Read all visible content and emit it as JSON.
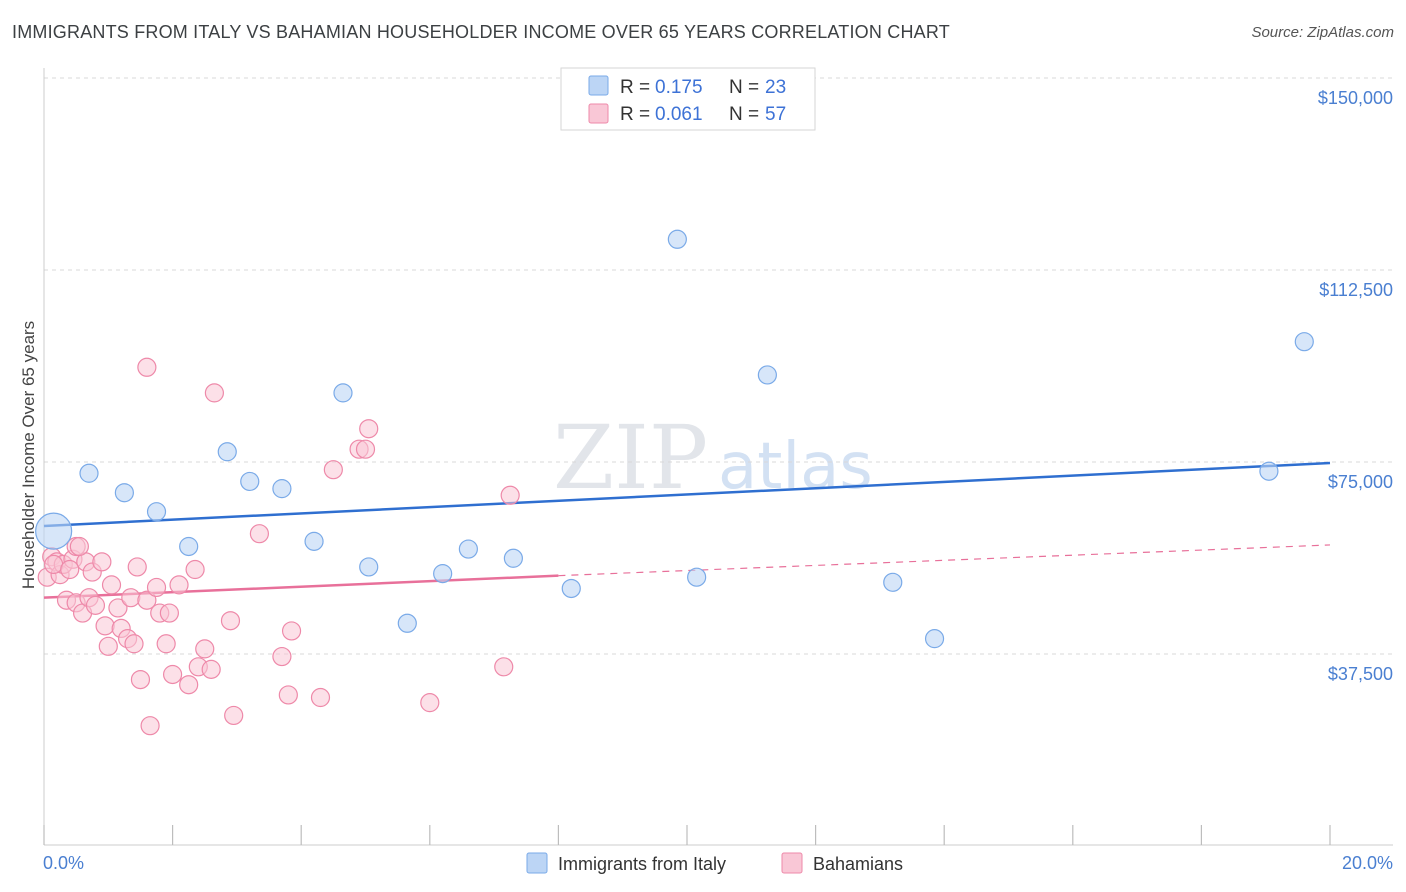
{
  "title": "IMMIGRANTS FROM ITALY VS BAHAMIAN HOUSEHOLDER INCOME OVER 65 YEARS CORRELATION CHART",
  "source": "Source: ZipAtlas.com",
  "watermark": {
    "zip": "ZIP",
    "atlas": "atlas"
  },
  "colors": {
    "blue": "#7aaae8",
    "blue_fill": "#bcd5f5",
    "blue_line": "#2f6fd0",
    "pink": "#ee89a9",
    "pink_fill": "#f9c7d6",
    "pink_line": "#e8709a",
    "grid": "#d8d8d8",
    "tick_text": "#4a7fd1"
  },
  "legend": {
    "rows": [
      {
        "r_label": "R =",
        "r_value": "0.175",
        "n_label": "N =",
        "n_value": "23"
      },
      {
        "r_label": "R =",
        "r_value": "0.061",
        "n_label": "N =",
        "n_value": "57"
      }
    ]
  },
  "chart_data": {
    "type": "scatter",
    "title": "IMMIGRANTS FROM ITALY VS BAHAMIAN HOUSEHOLDER INCOME OVER 65 YEARS CORRELATION CHART",
    "xlabel": "",
    "ylabel": "Householder Income Over 65 years",
    "xlim": [
      0,
      20
    ],
    "ylim": [
      0,
      155000
    ],
    "x_tick_labels": [
      "0.0%",
      "20.0%"
    ],
    "y_ticks": [
      37500,
      75000,
      112500,
      150000
    ],
    "y_tick_labels": [
      "$37,500",
      "$75,000",
      "$112,500",
      "$150,000"
    ],
    "grid": true,
    "series": [
      {
        "name": "Immigrants from Italy",
        "color": "#7aaae8",
        "trend": {
          "x": [
            0,
            20
          ],
          "y": [
            62500,
            74800
          ]
        },
        "points": [
          {
            "x": 0.15,
            "y": 61500,
            "big": true
          },
          {
            "x": 0.7,
            "y": 72800
          },
          {
            "x": 1.25,
            "y": 69000
          },
          {
            "x": 1.75,
            "y": 65300
          },
          {
            "x": 2.25,
            "y": 58500
          },
          {
            "x": 2.85,
            "y": 77000
          },
          {
            "x": 3.2,
            "y": 71200
          },
          {
            "x": 3.7,
            "y": 69800
          },
          {
            "x": 4.2,
            "y": 59500
          },
          {
            "x": 4.65,
            "y": 88500
          },
          {
            "x": 5.05,
            "y": 54500
          },
          {
            "x": 5.65,
            "y": 43500
          },
          {
            "x": 6.2,
            "y": 53200
          },
          {
            "x": 6.6,
            "y": 58000
          },
          {
            "x": 7.3,
            "y": 56200
          },
          {
            "x": 8.2,
            "y": 50300
          },
          {
            "x": 9.85,
            "y": 118500
          },
          {
            "x": 10.15,
            "y": 52500
          },
          {
            "x": 11.25,
            "y": 92000
          },
          {
            "x": 13.2,
            "y": 51500
          },
          {
            "x": 13.85,
            "y": 40500
          },
          {
            "x": 19.05,
            "y": 73200
          },
          {
            "x": 19.6,
            "y": 98500
          }
        ]
      },
      {
        "name": "Bahamians",
        "color": "#ee89a9",
        "trend": {
          "x": [
            0,
            8
          ],
          "y": [
            48500,
            52800
          ]
        },
        "trend_dashed": {
          "x": [
            8,
            20
          ],
          "y": [
            52800,
            58800
          ]
        },
        "points": [
          {
            "x": 0.05,
            "y": 52500
          },
          {
            "x": 0.12,
            "y": 56500
          },
          {
            "x": 0.2,
            "y": 55500
          },
          {
            "x": 0.25,
            "y": 53000
          },
          {
            "x": 0.3,
            "y": 55000
          },
          {
            "x": 0.35,
            "y": 48000
          },
          {
            "x": 0.45,
            "y": 56000
          },
          {
            "x": 0.5,
            "y": 58500
          },
          {
            "x": 0.5,
            "y": 47500
          },
          {
            "x": 0.6,
            "y": 45500
          },
          {
            "x": 0.65,
            "y": 55500
          },
          {
            "x": 0.7,
            "y": 48500
          },
          {
            "x": 0.75,
            "y": 53500
          },
          {
            "x": 0.8,
            "y": 47000
          },
          {
            "x": 0.9,
            "y": 55500
          },
          {
            "x": 0.95,
            "y": 43000
          },
          {
            "x": 1.0,
            "y": 39000
          },
          {
            "x": 1.05,
            "y": 51000
          },
          {
            "x": 1.15,
            "y": 46500
          },
          {
            "x": 1.2,
            "y": 42500
          },
          {
            "x": 1.3,
            "y": 40500
          },
          {
            "x": 1.35,
            "y": 48500
          },
          {
            "x": 1.4,
            "y": 39500
          },
          {
            "x": 1.45,
            "y": 54500
          },
          {
            "x": 1.5,
            "y": 32500
          },
          {
            "x": 1.6,
            "y": 48000
          },
          {
            "x": 1.65,
            "y": 23500
          },
          {
            "x": 1.75,
            "y": 50500
          },
          {
            "x": 1.8,
            "y": 45500
          },
          {
            "x": 1.9,
            "y": 39500
          },
          {
            "x": 1.95,
            "y": 45500
          },
          {
            "x": 2.0,
            "y": 33500
          },
          {
            "x": 2.1,
            "y": 51000
          },
          {
            "x": 2.25,
            "y": 31500
          },
          {
            "x": 2.35,
            "y": 54000
          },
          {
            "x": 2.4,
            "y": 35000
          },
          {
            "x": 2.5,
            "y": 38500
          },
          {
            "x": 2.6,
            "y": 34500
          },
          {
            "x": 2.65,
            "y": 88500
          },
          {
            "x": 2.95,
            "y": 25500
          },
          {
            "x": 2.9,
            "y": 44000
          },
          {
            "x": 3.35,
            "y": 61000
          },
          {
            "x": 3.7,
            "y": 37000
          },
          {
            "x": 3.8,
            "y": 29500
          },
          {
            "x": 3.85,
            "y": 42000
          },
          {
            "x": 4.3,
            "y": 29000
          },
          {
            "x": 4.5,
            "y": 73500
          },
          {
            "x": 4.9,
            "y": 77500
          },
          {
            "x": 5.0,
            "y": 77500
          },
          {
            "x": 5.05,
            "y": 81500
          },
          {
            "x": 6.0,
            "y": 28000
          },
          {
            "x": 7.15,
            "y": 35000
          },
          {
            "x": 7.25,
            "y": 68500
          },
          {
            "x": 1.6,
            "y": 93500
          },
          {
            "x": 0.55,
            "y": 58500
          },
          {
            "x": 0.15,
            "y": 55000
          },
          {
            "x": 0.4,
            "y": 54000
          }
        ]
      }
    ]
  },
  "bottom_legend": {
    "items": [
      "Immigrants from Italy",
      "Bahamians"
    ]
  }
}
